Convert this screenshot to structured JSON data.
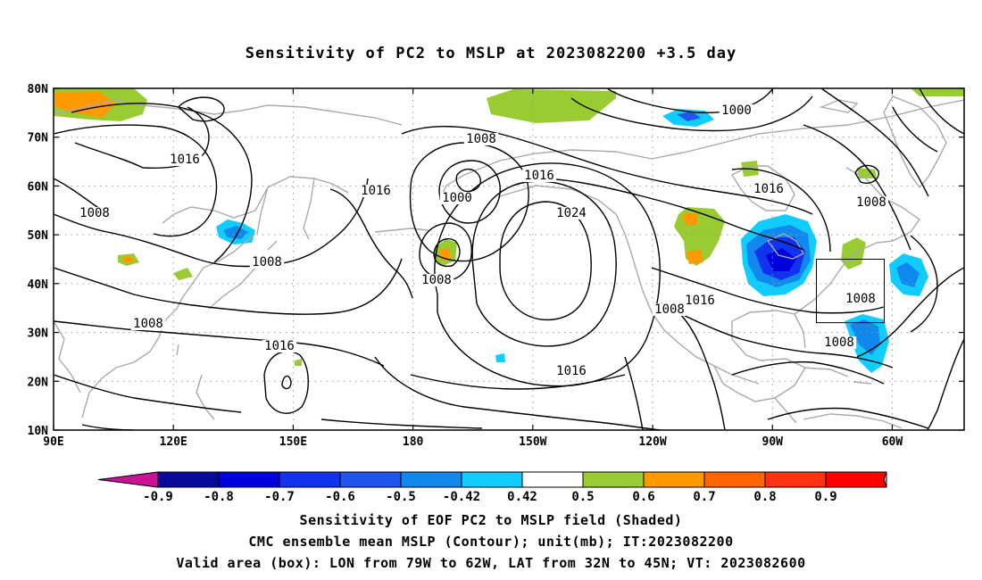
{
  "title": "Sensitivity of PC2 to MSLP at 2023082200 +3.5 day",
  "map": {
    "lat_labels": [
      "80N",
      "70N",
      "60N",
      "50N",
      "40N",
      "30N",
      "20N",
      "10N"
    ],
    "lat_values": [
      80,
      70,
      60,
      50,
      40,
      30,
      20,
      10
    ],
    "lon_labels": [
      "90E",
      "120E",
      "150E",
      "180",
      "150W",
      "120W",
      "90W",
      "60W"
    ],
    "lon_values": [
      90,
      120,
      150,
      180,
      210,
      240,
      270,
      300
    ],
    "lon_range": [
      90,
      318
    ],
    "lat_range": [
      10,
      80
    ],
    "contour_labels": [
      "1016",
      "1008",
      "1008",
      "1016",
      "1008",
      "1000",
      "1016",
      "1024",
      "1016",
      "1000",
      "1008",
      "1008",
      "1016",
      "1008",
      "1008",
      "1016",
      "1008",
      "1008",
      "1016"
    ],
    "colors": {
      "coast": "#aaaaaa",
      "contour": "#000000",
      "grid": "#9a9a9a"
    }
  },
  "valid_box": {
    "lon_west": 79,
    "lon_east": 62,
    "lat_south": 32,
    "lat_north": 45
  },
  "colorbar": {
    "ticks": [
      "-0.9",
      "-0.8",
      "-0.7",
      "-0.6",
      "-0.5",
      "-0.42",
      "0.42",
      "0.5",
      "0.6",
      "0.7",
      "0.8",
      "0.9"
    ],
    "colors": [
      "#cc1199",
      "#0a0a9a",
      "#0000dd",
      "#1133ee",
      "#2255ee",
      "#1188ee",
      "#11ccff",
      "#ffffff",
      "#99cc33",
      "#ff9900",
      "#ff6600",
      "#ff3311",
      "#ff0000",
      "#ff99cc"
    ]
  },
  "captions": [
    "Sensitivity of EOF PC2 to MSLP field (Shaded)",
    "CMC ensemble mean MSLP (Contour); unit(mb); IT:2023082200",
    "Valid area (box): LON from 79W to 62W, LAT from 32N to 45N; VT: 2023082600"
  ]
}
